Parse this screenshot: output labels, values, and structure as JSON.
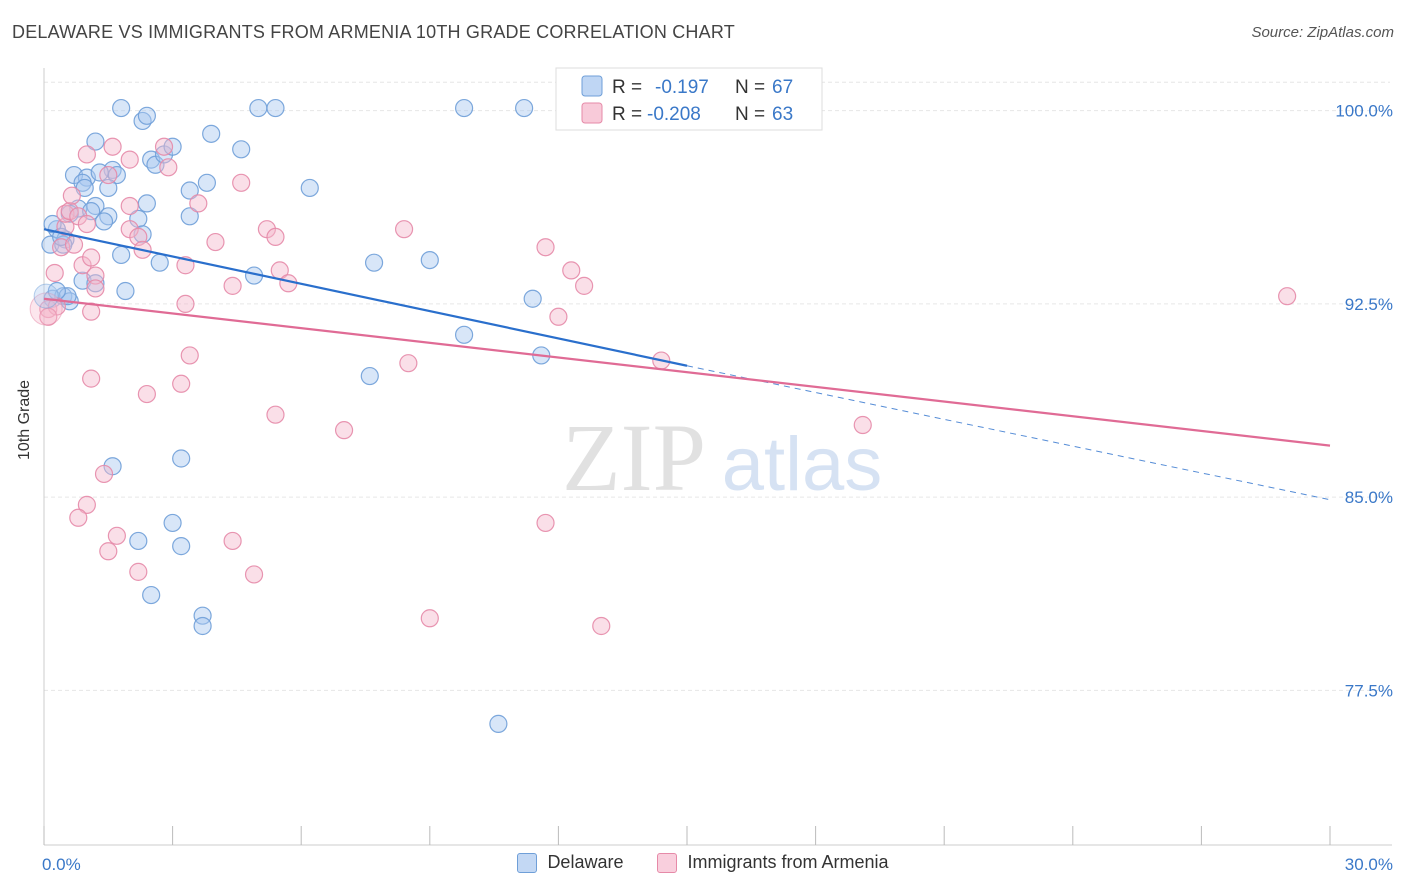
{
  "header": {
    "title": "DELAWARE VS IMMIGRANTS FROM ARMENIA 10TH GRADE CORRELATION CHART",
    "source": "Source: ZipAtlas.com"
  },
  "watermark": {
    "zip": "ZIP",
    "atlas": "atlas"
  },
  "colors": {
    "delaware_fill": "#a9c8f0",
    "delaware_stroke": "#6f9fd8",
    "delaware_line": "#2a6fcc",
    "armenia_fill": "#f5b8cc",
    "armenia_stroke": "#e68aa8",
    "armenia_line": "#e06b95",
    "tick_label": "#3a78c8",
    "grid": "#e6e6e6"
  },
  "legend": {
    "rows": [
      {
        "r_label": "R =",
        "r_value": "-0.197",
        "n_label": "N =",
        "n_value": "67"
      },
      {
        "r_label": "R =",
        "r_value": "-0.208",
        "n_label": "N =",
        "n_value": "63"
      }
    ]
  },
  "chart_data": {
    "type": "scatter",
    "title": "DELAWARE VS IMMIGRANTS FROM ARMENIA 10TH GRADE CORRELATION CHART",
    "xlabel": "",
    "ylabel": "10th Grade",
    "xlim": [
      0,
      30
    ],
    "ylim": [
      71.5,
      101.5
    ],
    "x_tick_labels": [
      {
        "value": 0,
        "label": "0.0%"
      },
      {
        "value": 30,
        "label": "30.0%"
      }
    ],
    "y_tick_labels": [
      {
        "value": 100,
        "label": "100.0%"
      },
      {
        "value": 92.5,
        "label": "92.5%"
      },
      {
        "value": 85,
        "label": "85.0%"
      },
      {
        "value": 77.5,
        "label": "77.5%"
      }
    ],
    "grid": true,
    "legend_position": "top-center",
    "series": [
      {
        "name": "Delaware",
        "r": -0.197,
        "n": 67,
        "trend": {
          "x": [
            0,
            15
          ],
          "y": [
            95.4,
            90.1
          ]
        },
        "trend_dashed": {
          "x": [
            15,
            30
          ],
          "y": [
            90.1,
            84.9
          ]
        },
        "points": [
          [
            1.8,
            100.1
          ],
          [
            2.3,
            99.6
          ],
          [
            2.4,
            99.8
          ],
          [
            5.0,
            100.1
          ],
          [
            5.4,
            100.1
          ],
          [
            9.8,
            100.1
          ],
          [
            11.2,
            100.1
          ],
          [
            1.2,
            98.8
          ],
          [
            3.9,
            99.1
          ],
          [
            4.6,
            98.5
          ],
          [
            1.6,
            97.7
          ],
          [
            2.5,
            98.1
          ],
          [
            2.6,
            97.9
          ],
          [
            0.7,
            97.5
          ],
          [
            1.0,
            97.4
          ],
          [
            1.3,
            97.6
          ],
          [
            1.7,
            97.5
          ],
          [
            0.9,
            97.2
          ],
          [
            0.95,
            97.0
          ],
          [
            3.8,
            97.2
          ],
          [
            3.4,
            96.9
          ],
          [
            0.8,
            96.2
          ],
          [
            1.2,
            96.3
          ],
          [
            2.4,
            96.4
          ],
          [
            0.6,
            96.0
          ],
          [
            1.1,
            96.1
          ],
          [
            1.5,
            95.9
          ],
          [
            2.2,
            95.8
          ],
          [
            3.4,
            95.9
          ],
          [
            0.3,
            95.4
          ],
          [
            0.5,
            95.0
          ],
          [
            1.4,
            95.7
          ],
          [
            2.3,
            95.2
          ],
          [
            0.15,
            94.8
          ],
          [
            0.45,
            94.8
          ],
          [
            1.8,
            94.4
          ],
          [
            2.7,
            94.1
          ],
          [
            4.9,
            93.6
          ],
          [
            7.7,
            94.1
          ],
          [
            9.0,
            94.2
          ],
          [
            0.9,
            93.4
          ],
          [
            1.2,
            93.3
          ],
          [
            1.9,
            93.0
          ],
          [
            0.2,
            92.7
          ],
          [
            0.45,
            92.8
          ],
          [
            0.6,
            92.6
          ],
          [
            11.4,
            92.7
          ],
          [
            9.8,
            91.3
          ],
          [
            11.6,
            90.5
          ],
          [
            7.6,
            89.7
          ],
          [
            3.2,
            86.5
          ],
          [
            1.6,
            86.2
          ],
          [
            3.0,
            84.0
          ],
          [
            2.2,
            83.3
          ],
          [
            3.2,
            83.1
          ],
          [
            2.5,
            81.2
          ],
          [
            3.7,
            80.4
          ],
          [
            3.7,
            80.0
          ],
          [
            10.6,
            76.2
          ],
          [
            0.55,
            92.8
          ],
          [
            1.5,
            97.0
          ],
          [
            0.2,
            95.6
          ],
          [
            0.4,
            95.1
          ],
          [
            2.8,
            98.3
          ],
          [
            3.0,
            98.6
          ],
          [
            6.2,
            97.0
          ],
          [
            0.3,
            93.0
          ]
        ]
      },
      {
        "name": "Immigrants from Armenia",
        "r": -0.208,
        "n": 63,
        "trend": {
          "x": [
            0,
            30
          ],
          "y": [
            92.7,
            87.0
          ]
        },
        "points": [
          [
            0.1,
            92.3
          ],
          [
            0.25,
            93.7
          ],
          [
            0.4,
            94.7
          ],
          [
            0.5,
            95.5
          ],
          [
            0.5,
            96.0
          ],
          [
            0.6,
            96.1
          ],
          [
            0.65,
            96.7
          ],
          [
            0.8,
            95.9
          ],
          [
            1.0,
            95.6
          ],
          [
            0.9,
            94.0
          ],
          [
            1.1,
            94.3
          ],
          [
            1.2,
            93.6
          ],
          [
            0.7,
            94.8
          ],
          [
            0.3,
            92.4
          ],
          [
            1.1,
            92.2
          ],
          [
            1.2,
            93.1
          ],
          [
            1.0,
            98.3
          ],
          [
            1.5,
            97.5
          ],
          [
            1.6,
            98.6
          ],
          [
            2.0,
            96.3
          ],
          [
            2.0,
            95.4
          ],
          [
            2.2,
            95.1
          ],
          [
            2.3,
            94.6
          ],
          [
            2.0,
            98.1
          ],
          [
            2.8,
            98.6
          ],
          [
            2.9,
            97.8
          ],
          [
            3.6,
            96.4
          ],
          [
            3.3,
            94.0
          ],
          [
            3.3,
            92.5
          ],
          [
            4.0,
            94.9
          ],
          [
            4.4,
            93.2
          ],
          [
            4.6,
            97.2
          ],
          [
            5.2,
            95.4
          ],
          [
            5.4,
            95.1
          ],
          [
            5.5,
            93.8
          ],
          [
            5.7,
            93.3
          ],
          [
            8.4,
            95.4
          ],
          [
            11.7,
            94.7
          ],
          [
            12.3,
            93.8
          ],
          [
            12.6,
            93.2
          ],
          [
            12.0,
            92.0
          ],
          [
            3.4,
            90.5
          ],
          [
            3.2,
            89.4
          ],
          [
            2.4,
            89.0
          ],
          [
            1.1,
            89.6
          ],
          [
            8.5,
            90.2
          ],
          [
            14.4,
            90.3
          ],
          [
            5.4,
            88.2
          ],
          [
            7.0,
            87.6
          ],
          [
            19.1,
            87.8
          ],
          [
            1.4,
            85.9
          ],
          [
            1.0,
            84.7
          ],
          [
            0.8,
            84.2
          ],
          [
            1.7,
            83.5
          ],
          [
            1.5,
            82.9
          ],
          [
            2.2,
            82.1
          ],
          [
            4.4,
            83.3
          ],
          [
            4.9,
            82.0
          ],
          [
            11.7,
            84.0
          ],
          [
            9.0,
            80.3
          ],
          [
            13.0,
            80.0
          ],
          [
            29.0,
            92.8
          ],
          [
            0.1,
            92.0
          ]
        ]
      }
    ]
  },
  "bottom_legend": {
    "items": [
      "Delaware",
      "Immigrants from Armenia"
    ]
  }
}
